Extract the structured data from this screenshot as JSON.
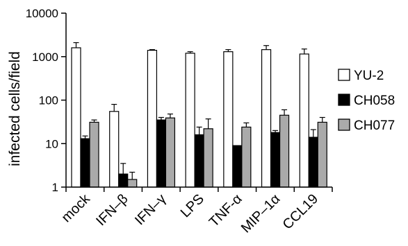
{
  "chart_data": {
    "type": "bar",
    "scale": "log",
    "ylabel": "infected cells/field",
    "ylim": [
      1,
      10000
    ],
    "y_ticks": [
      "1",
      "10",
      "100",
      "1000",
      "10000"
    ],
    "categories": [
      "mock",
      "IFN–β",
      "IFN–γ",
      "LPS",
      "TNF-α",
      "MIP–1α",
      "CCL19"
    ],
    "series": [
      {
        "name": "YU-2",
        "color": "#ffffff",
        "values": [
          1600,
          55,
          1400,
          1200,
          1300,
          1450,
          1150
        ],
        "error_upper": [
          2100,
          80,
          1450,
          1300,
          1450,
          1800,
          1500
        ]
      },
      {
        "name": "CH058",
        "color": "#000000",
        "values": [
          13,
          2,
          35,
          16,
          9,
          18,
          14
        ],
        "error_upper": [
          15,
          3.5,
          40,
          24,
          9,
          20,
          21
        ]
      },
      {
        "name": "CH077",
        "color": "#aaaaaa",
        "values": [
          31,
          1.5,
          39,
          22,
          24,
          45,
          31
        ],
        "error_upper": [
          35,
          2.2,
          48,
          37,
          30,
          60,
          40
        ]
      }
    ],
    "error_bars": "upper",
    "grid": false,
    "legend": "right"
  }
}
